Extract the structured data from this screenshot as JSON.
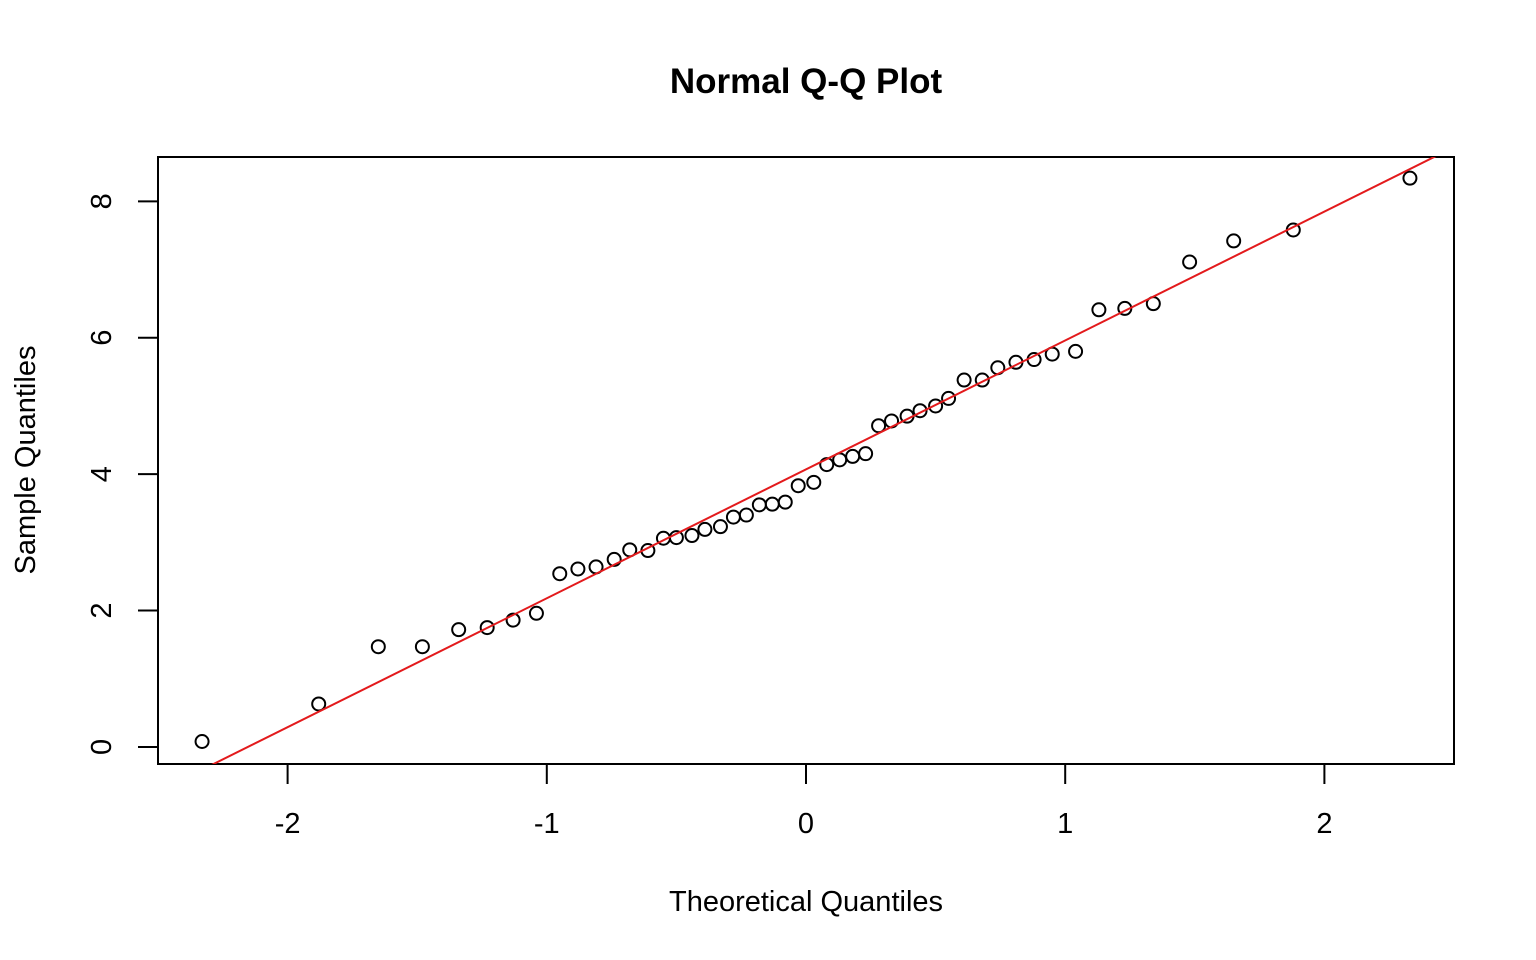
{
  "chart_data": {
    "type": "scatter",
    "title": "Normal Q-Q Plot",
    "xlabel": "Theoretical Quantiles",
    "ylabel": "Sample Quantiles",
    "xlim": [
      -2.5,
      2.5
    ],
    "ylim": [
      -0.25,
      8.65
    ],
    "xticks": [
      -2,
      -1,
      0,
      1,
      2
    ],
    "yticks": [
      0,
      2,
      4,
      6,
      8
    ],
    "xtick_labels": [
      "-2",
      "-1",
      "0",
      "1",
      "2"
    ],
    "ytick_labels": [
      "0",
      "2",
      "4",
      "6",
      "8"
    ],
    "grid": false,
    "legend": "none",
    "point_color": "#000000",
    "line_color": "#e31a1c",
    "series": [
      {
        "marker": "open-circle",
        "x": [
          -2.33,
          -1.88,
          -1.65,
          -1.48,
          -1.34,
          -1.23,
          -1.13,
          -1.04,
          -0.95,
          -0.88,
          -0.81,
          -0.74,
          -0.68,
          -0.61,
          -0.55,
          -0.5,
          -0.44,
          -0.39,
          -0.33,
          -0.28,
          -0.23,
          -0.18,
          -0.13,
          -0.08,
          -0.03,
          0.03,
          0.08,
          0.13,
          0.18,
          0.23,
          0.28,
          0.33,
          0.39,
          0.44,
          0.5,
          0.55,
          0.61,
          0.68,
          0.74,
          0.81,
          0.88,
          0.95,
          1.04,
          1.13,
          1.23,
          1.34,
          1.48,
          1.65,
          1.88,
          2.33
        ],
        "y": [
          0.08,
          0.63,
          1.47,
          1.47,
          1.72,
          1.75,
          1.86,
          1.96,
          2.54,
          2.61,
          2.64,
          2.75,
          2.89,
          2.88,
          3.06,
          3.07,
          3.1,
          3.19,
          3.23,
          3.37,
          3.4,
          3.55,
          3.56,
          3.59,
          3.83,
          3.88,
          4.14,
          4.21,
          4.26,
          4.3,
          4.71,
          4.78,
          4.85,
          4.93,
          5.0,
          5.11,
          5.38,
          5.38,
          5.56,
          5.64,
          5.68,
          5.76,
          5.8,
          6.41,
          6.43,
          6.5,
          7.11,
          7.42,
          7.58,
          8.34
        ]
      }
    ],
    "reference_line": {
      "intercept": 4.07,
      "slope": 1.89
    }
  }
}
